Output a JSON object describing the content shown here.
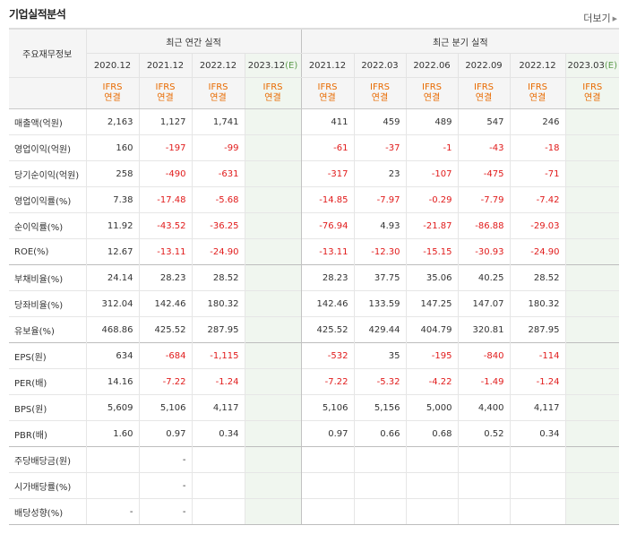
{
  "title": "기업실적분석",
  "more": {
    "label": "더보기",
    "icon": "triangle-right-icon"
  },
  "headers": {
    "row_label": "주요재무정보",
    "annual_group": "최근 연간 실적",
    "quarter_group": "최근 분기 실적",
    "annual_periods": [
      "2020.12",
      "2021.12",
      "2022.12",
      "2023.12"
    ],
    "annual_estimate": "(E)",
    "quarter_periods": [
      "2021.12",
      "2022.03",
      "2022.06",
      "2022.09",
      "2022.12",
      "2023.03"
    ],
    "quarter_estimate": "(E)",
    "ifrs_line1": "IFRS",
    "ifrs_line2": "연결"
  },
  "colors": {
    "negative": "#e11b1b",
    "ifrs": "#e86a00",
    "estimate_bg": "#f0f6ef",
    "estimate_mark": "#5c9b4c"
  },
  "rows": [
    {
      "label": "매출액(억원)",
      "annual": [
        "2,163",
        "1,127",
        "1,741",
        ""
      ],
      "quarter": [
        "411",
        "459",
        "489",
        "547",
        "246",
        ""
      ]
    },
    {
      "label": "영업이익(억원)",
      "annual": [
        "160",
        "-197",
        "-99",
        ""
      ],
      "quarter": [
        "-61",
        "-37",
        "-1",
        "-43",
        "-18",
        ""
      ]
    },
    {
      "label": "당기순이익(억원)",
      "annual": [
        "258",
        "-490",
        "-631",
        ""
      ],
      "quarter": [
        "-317",
        "23",
        "-107",
        "-475",
        "-71",
        ""
      ]
    },
    {
      "label": "영업이익률(%)",
      "annual": [
        "7.38",
        "-17.48",
        "-5.68",
        ""
      ],
      "quarter": [
        "-14.85",
        "-7.97",
        "-0.29",
        "-7.79",
        "-7.42",
        ""
      ]
    },
    {
      "label": "순이익률(%)",
      "annual": [
        "11.92",
        "-43.52",
        "-36.25",
        ""
      ],
      "quarter": [
        "-76.94",
        "4.93",
        "-21.87",
        "-86.88",
        "-29.03",
        ""
      ]
    },
    {
      "label": "ROE(%)",
      "annual": [
        "12.67",
        "-13.11",
        "-24.90",
        ""
      ],
      "quarter": [
        "-13.11",
        "-12.30",
        "-15.15",
        "-30.93",
        "-24.90",
        ""
      ]
    },
    {
      "label": "부채비율(%)",
      "annual": [
        "24.14",
        "28.23",
        "28.52",
        ""
      ],
      "quarter": [
        "28.23",
        "37.75",
        "35.06",
        "40.25",
        "28.52",
        ""
      ]
    },
    {
      "label": "당좌비율(%)",
      "annual": [
        "312.04",
        "142.46",
        "180.32",
        ""
      ],
      "quarter": [
        "142.46",
        "133.59",
        "147.25",
        "147.07",
        "180.32",
        ""
      ]
    },
    {
      "label": "유보율(%)",
      "annual": [
        "468.86",
        "425.52",
        "287.95",
        ""
      ],
      "quarter": [
        "425.52",
        "429.44",
        "404.79",
        "320.81",
        "287.95",
        ""
      ]
    },
    {
      "label": "EPS(원)",
      "annual": [
        "634",
        "-684",
        "-1,115",
        ""
      ],
      "quarter": [
        "-532",
        "35",
        "-195",
        "-840",
        "-114",
        ""
      ]
    },
    {
      "label": "PER(배)",
      "annual": [
        "14.16",
        "-7.22",
        "-1.24",
        ""
      ],
      "quarter": [
        "-7.22",
        "-5.32",
        "-4.22",
        "-1.49",
        "-1.24",
        ""
      ]
    },
    {
      "label": "BPS(원)",
      "annual": [
        "5,609",
        "5,106",
        "4,117",
        ""
      ],
      "quarter": [
        "5,106",
        "5,156",
        "5,000",
        "4,400",
        "4,117",
        ""
      ]
    },
    {
      "label": "PBR(배)",
      "annual": [
        "1.60",
        "0.97",
        "0.34",
        ""
      ],
      "quarter": [
        "0.97",
        "0.66",
        "0.68",
        "0.52",
        "0.34",
        ""
      ]
    },
    {
      "label": "주당배당금(원)",
      "annual": [
        "",
        "-",
        "",
        ""
      ],
      "quarter": [
        "",
        "",
        "",
        "",
        "",
        ""
      ]
    },
    {
      "label": "시가배당률(%)",
      "annual": [
        "",
        "-",
        "",
        ""
      ],
      "quarter": [
        "",
        "",
        "",
        "",
        "",
        ""
      ]
    },
    {
      "label": "배당성향(%)",
      "annual": [
        "-",
        "-",
        "",
        ""
      ],
      "quarter": [
        "",
        "",
        "",
        "",
        "",
        ""
      ]
    }
  ]
}
